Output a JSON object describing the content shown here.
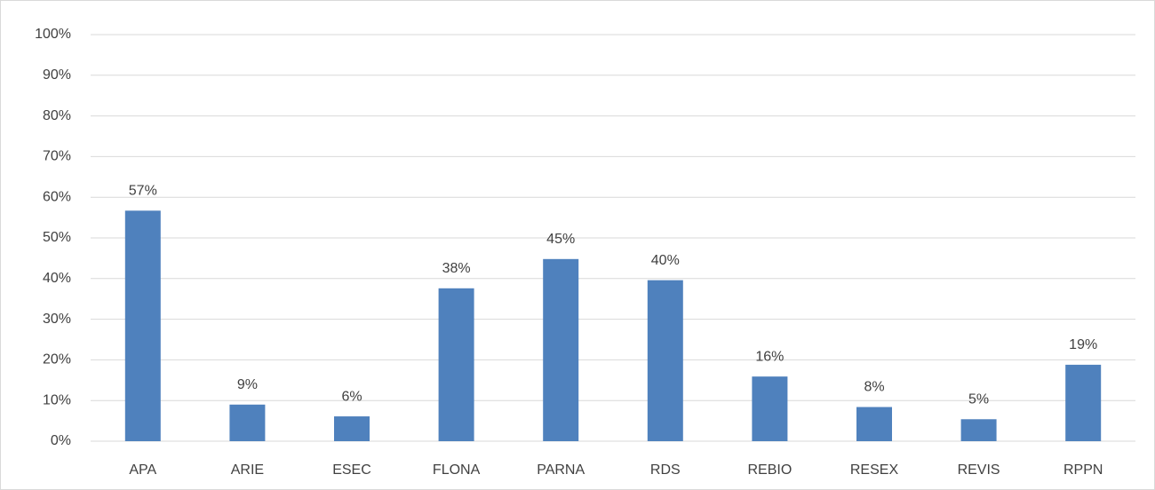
{
  "chart_data": {
    "type": "bar",
    "categories": [
      "APA",
      "ARIE",
      "ESEC",
      "FLONA",
      "PARNA",
      "RDS",
      "REBIO",
      "RESEX",
      "REVIS",
      "RPPN"
    ],
    "values": [
      56.7,
      9.0,
      6.1,
      37.6,
      44.8,
      39.6,
      15.9,
      8.4,
      5.4,
      18.8
    ],
    "value_labels": [
      "57%",
      "9%",
      "6%",
      "38%",
      "45%",
      "40%",
      "16%",
      "8%",
      "5%",
      "19%"
    ],
    "color": "#4f81bd",
    "ylim": [
      0,
      100
    ],
    "yticks": [
      {
        "value": 0,
        "label": "0%"
      },
      {
        "value": 10,
        "label": "10%"
      },
      {
        "value": 20,
        "label": "20%"
      },
      {
        "value": 30,
        "label": "30%"
      },
      {
        "value": 40,
        "label": "40%"
      },
      {
        "value": 50,
        "label": "50%"
      },
      {
        "value": 60,
        "label": "60%"
      },
      {
        "value": 70,
        "label": "70%"
      },
      {
        "value": 80,
        "label": "80%"
      },
      {
        "value": 90,
        "label": "90%"
      },
      {
        "value": 100,
        "label": "100%"
      }
    ],
    "grid": true
  }
}
